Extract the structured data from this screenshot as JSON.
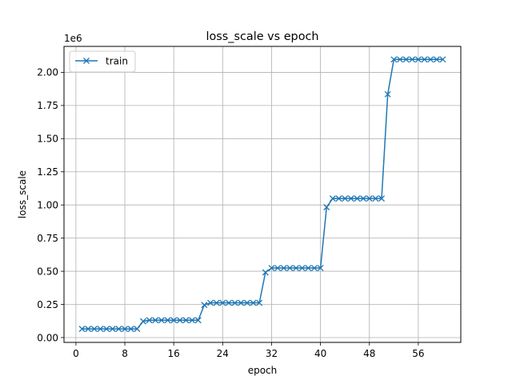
{
  "chart_data": {
    "type": "line",
    "title": "loss_scale vs epoch",
    "xlabel": "epoch",
    "ylabel": "loss_scale",
    "y_offset_label": "1e6",
    "xlim": [
      -1.95,
      62.95
    ],
    "ylim": [
      -0.0364,
      2.1956
    ],
    "y_unit": 1000000,
    "x_ticks": [
      0,
      8,
      16,
      24,
      32,
      40,
      48,
      56
    ],
    "y_ticks": [
      0.0,
      0.25,
      0.5,
      0.75,
      1.0,
      1.25,
      1.5,
      1.75,
      2.0
    ],
    "y_tick_labels": [
      "0.00",
      "0.25",
      "0.50",
      "0.75",
      "1.00",
      "1.25",
      "1.50",
      "1.75",
      "2.00"
    ],
    "grid": true,
    "legend_position": "top-left",
    "series": [
      {
        "name": "train",
        "color": "#1f77b4",
        "marker": "x",
        "x": [
          1,
          2,
          3,
          4,
          5,
          6,
          7,
          8,
          9,
          10,
          11,
          12,
          13,
          14,
          15,
          16,
          17,
          18,
          19,
          20,
          21,
          22,
          23,
          24,
          25,
          26,
          27,
          28,
          29,
          30,
          31,
          32,
          33,
          34,
          35,
          36,
          37,
          38,
          39,
          40,
          41,
          42,
          43,
          44,
          45,
          46,
          47,
          48,
          49,
          50,
          51,
          52,
          53,
          54,
          55,
          56,
          57,
          58,
          59,
          60
        ],
        "y": [
          0.0655,
          0.0655,
          0.0655,
          0.0655,
          0.0655,
          0.0655,
          0.0655,
          0.0655,
          0.0655,
          0.0655,
          0.1228,
          0.131,
          0.131,
          0.131,
          0.131,
          0.131,
          0.131,
          0.131,
          0.131,
          0.131,
          0.2457,
          0.262,
          0.262,
          0.262,
          0.262,
          0.262,
          0.262,
          0.262,
          0.262,
          0.262,
          0.4915,
          0.5243,
          0.5243,
          0.5243,
          0.5243,
          0.5243,
          0.5243,
          0.5243,
          0.5243,
          0.5243,
          0.983,
          1.0486,
          1.0486,
          1.0486,
          1.0486,
          1.0486,
          1.0486,
          1.0486,
          1.0486,
          1.0486,
          1.835,
          2.0972,
          2.0972,
          2.0972,
          2.0972,
          2.0972,
          2.0972,
          2.0972,
          2.0972,
          2.0972
        ]
      }
    ]
  }
}
